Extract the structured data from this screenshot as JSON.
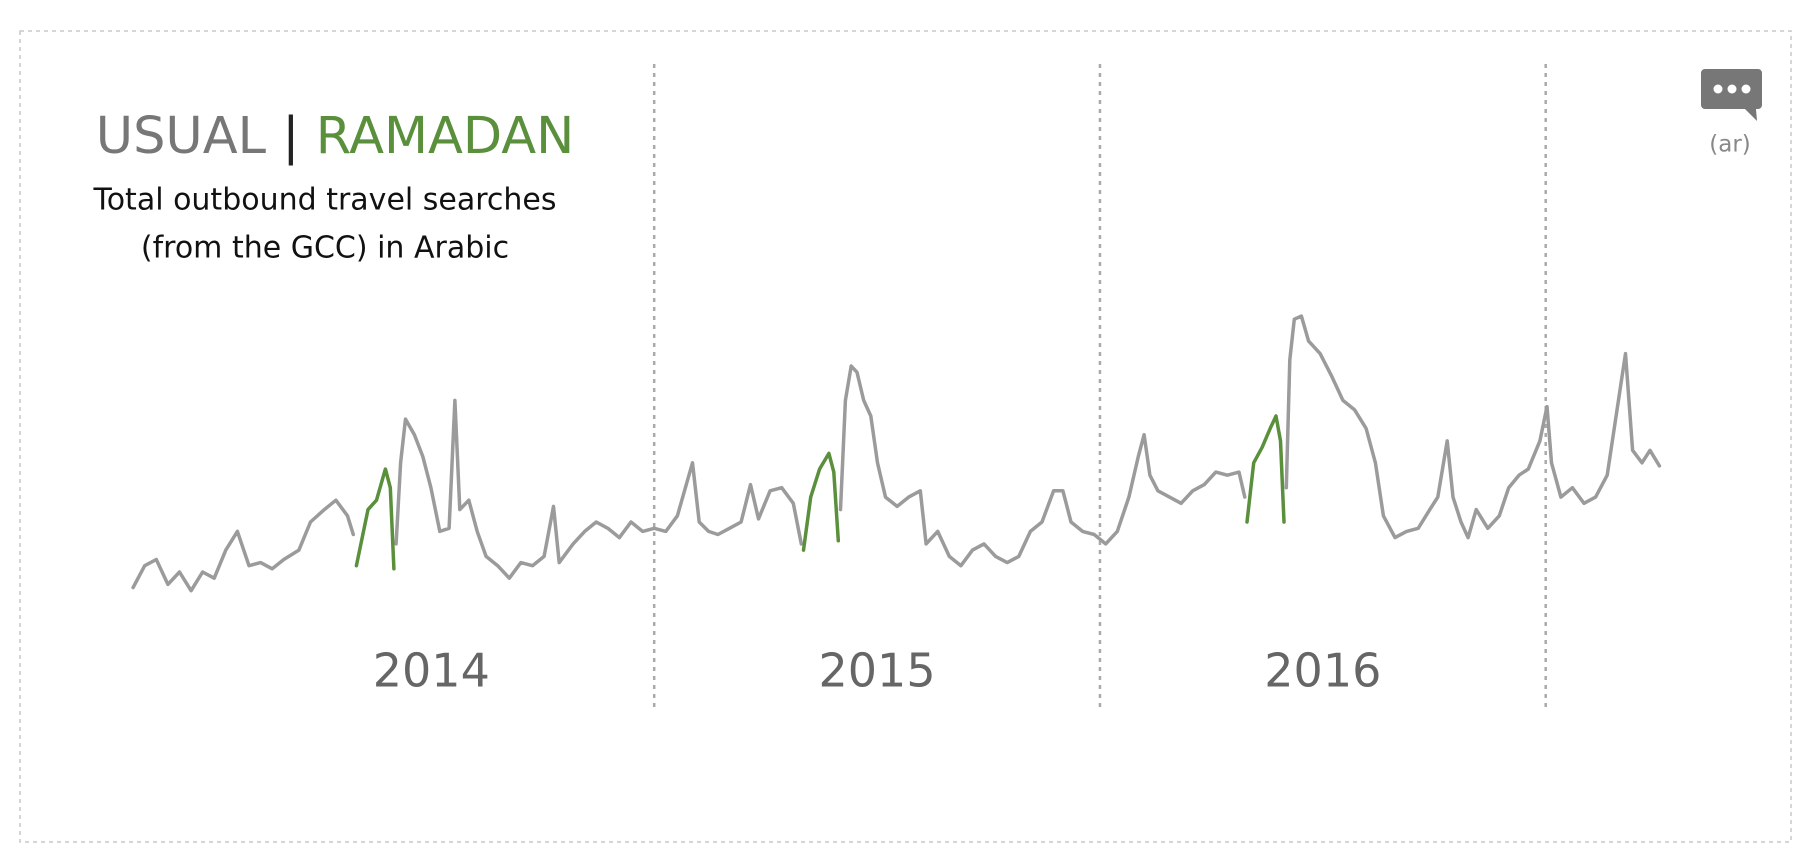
{
  "chart_data": {
    "type": "line",
    "legend_separator": "|",
    "subtitle_lines": [
      "Total outbound travel searches",
      "(from the GCC) in Arabic"
    ],
    "language_label": "(ar)",
    "xlim": [
      2013.75,
      2017.4
    ],
    "ylim": [
      0,
      100
    ],
    "xticks": [
      {
        "value": 2014.5,
        "label": "2014"
      },
      {
        "value": 2015.5,
        "label": "2015"
      },
      {
        "value": 2016.5,
        "label": "2016"
      }
    ],
    "dividers": [
      2015,
      2016,
      2017
    ],
    "x": [
      2013.831,
      2013.857,
      2013.883,
      2013.909,
      2013.935,
      2013.961,
      2013.987,
      2014.013,
      2014.039,
      2014.065,
      2014.091,
      2014.117,
      2014.143,
      2014.169,
      2014.203,
      2014.229,
      2014.26,
      2014.286,
      2014.312,
      2014.325,
      2014.332,
      2014.358,
      2014.377,
      2014.397,
      2014.408,
      2014.416,
      2014.421,
      2014.431,
      2014.442,
      2014.462,
      2014.481,
      2014.499,
      2014.519,
      2014.54,
      2014.553,
      2014.564,
      2014.584,
      2014.603,
      2014.623,
      2014.649,
      2014.675,
      2014.701,
      2014.727,
      2014.753,
      2014.774,
      2014.787,
      2014.818,
      2014.844,
      2014.87,
      2014.896,
      2014.922,
      2014.948,
      2014.974,
      2015.0,
      2015.026,
      2015.052,
      2015.07,
      2015.086,
      2015.101,
      2015.122,
      2015.143,
      2015.169,
      2015.195,
      2015.216,
      2015.234,
      2015.26,
      2015.286,
      2015.312,
      2015.33,
      2015.335,
      2015.351,
      2015.371,
      2015.392,
      2015.403,
      2015.413,
      2015.418,
      2015.429,
      2015.442,
      2015.455,
      2015.47,
      2015.486,
      2015.501,
      2015.519,
      2015.545,
      2015.571,
      2015.597,
      2015.61,
      2015.636,
      2015.662,
      2015.688,
      2015.714,
      2015.74,
      2015.766,
      2015.792,
      2015.818,
      2015.844,
      2015.87,
      2015.896,
      2015.917,
      2015.935,
      2015.961,
      2015.987,
      2016.013,
      2016.039,
      2016.065,
      2016.086,
      2016.099,
      2016.112,
      2016.13,
      2016.156,
      2016.182,
      2016.208,
      2016.234,
      2016.26,
      2016.286,
      2016.312,
      2016.325,
      2016.33,
      2016.345,
      2016.364,
      2016.382,
      2016.395,
      2016.405,
      2016.413,
      2016.418,
      2016.426,
      2016.436,
      2016.452,
      2016.468,
      2016.494,
      2016.519,
      2016.545,
      2016.571,
      2016.597,
      2016.618,
      2016.636,
      2016.662,
      2016.688,
      2016.714,
      2016.74,
      2016.758,
      2016.779,
      2016.792,
      2016.81,
      2016.826,
      2016.844,
      2016.87,
      2016.896,
      2016.917,
      2016.94,
      2016.961,
      2016.987,
      2017.003,
      2017.013,
      2017.034,
      2017.06,
      2017.086,
      2017.112,
      2017.138,
      2017.158,
      2017.179,
      2017.195,
      2017.216,
      2017.234,
      2017.255
    ],
    "series": [
      {
        "name": "USUAL",
        "color": "#9b9b9b",
        "values": [
          12,
          19,
          21,
          13,
          17,
          11,
          17,
          15,
          24,
          30,
          19,
          20,
          18,
          21,
          24,
          33,
          37,
          40,
          35,
          29,
          null,
          null,
          null,
          null,
          null,
          null,
          26,
          52,
          66,
          61,
          54,
          44,
          30,
          31,
          72,
          37,
          40,
          30,
          22,
          19,
          15,
          20,
          19,
          22,
          38,
          20,
          26,
          30,
          33,
          31,
          28,
          33,
          30,
          31,
          30,
          35,
          44,
          52,
          33,
          30,
          29,
          31,
          33,
          45,
          34,
          43,
          44,
          39,
          26,
          null,
          null,
          null,
          null,
          null,
          null,
          37,
          72,
          83,
          81,
          72,
          67,
          52,
          41,
          38,
          41,
          43,
          26,
          30,
          22,
          19,
          24,
          26,
          22,
          20,
          22,
          30,
          33,
          43,
          43,
          33,
          30,
          29,
          26,
          30,
          41,
          54,
          61,
          48,
          43,
          41,
          39,
          43,
          45,
          49,
          48,
          49,
          41,
          null,
          null,
          null,
          null,
          null,
          null,
          null,
          44,
          85,
          98,
          99,
          91,
          87,
          80,
          72,
          69,
          63,
          52,
          35,
          28,
          30,
          31,
          37,
          41,
          59,
          41,
          33,
          28,
          37,
          31,
          35,
          44,
          48,
          50,
          59,
          70,
          52,
          41,
          44,
          39,
          41,
          48,
          67,
          87,
          56,
          52,
          56,
          51
        ]
      },
      {
        "name": "RAMADAN",
        "color": "#5a8f3c",
        "values": [
          null,
          null,
          null,
          null,
          null,
          null,
          null,
          null,
          null,
          null,
          null,
          null,
          null,
          null,
          null,
          null,
          null,
          null,
          null,
          null,
          19,
          37,
          40,
          50,
          44,
          18,
          null,
          null,
          null,
          null,
          null,
          null,
          null,
          null,
          null,
          null,
          null,
          null,
          null,
          null,
          null,
          null,
          null,
          null,
          null,
          null,
          null,
          null,
          null,
          null,
          null,
          null,
          null,
          null,
          null,
          null,
          null,
          null,
          null,
          null,
          null,
          null,
          null,
          null,
          null,
          null,
          null,
          null,
          null,
          24,
          41,
          50,
          55,
          49,
          27,
          null,
          null,
          null,
          null,
          null,
          null,
          null,
          null,
          null,
          null,
          null,
          null,
          null,
          null,
          null,
          null,
          null,
          null,
          null,
          null,
          null,
          null,
          null,
          null,
          null,
          null,
          null,
          null,
          null,
          null,
          null,
          null,
          null,
          null,
          null,
          null,
          null,
          null,
          null,
          null,
          null,
          null,
          33,
          52,
          57,
          63,
          67,
          59,
          33,
          null,
          null,
          null,
          null,
          null,
          null,
          null,
          null,
          null,
          null,
          null,
          null,
          null,
          null,
          null,
          null,
          null,
          null,
          null,
          null,
          null,
          null,
          null,
          null,
          null,
          null,
          null,
          null,
          null,
          null,
          null,
          null,
          null,
          null,
          null,
          null,
          null,
          null,
          null,
          null,
          null
        ]
      }
    ]
  }
}
